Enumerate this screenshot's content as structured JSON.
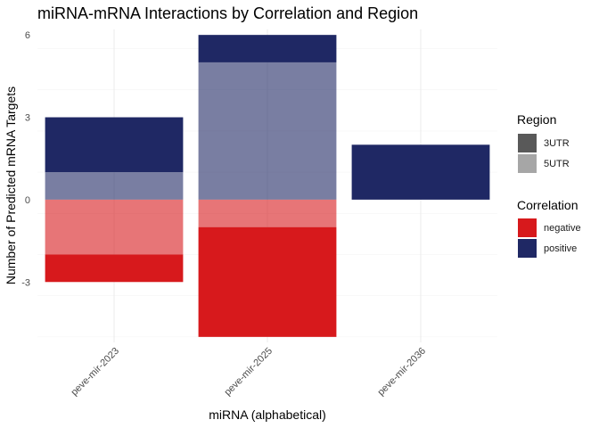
{
  "chart_data": {
    "type": "bar",
    "stacked": true,
    "title": "miRNA-mRNA Interactions by Correlation and Region",
    "xlabel": "miRNA (alphabetical)",
    "ylabel": "Number of Predicted mRNA Targets",
    "categories": [
      "peve-mir-2023",
      "peve-mir-2025",
      "peve-mir-2036"
    ],
    "ylim": [
      -5.2,
      6.2
    ],
    "yticks": [
      -3,
      0,
      3,
      6
    ],
    "series": [
      {
        "name": "positive 5UTR",
        "correlation": "positive",
        "region": "5UTR",
        "color": "#1f2864",
        "alpha": 0.6,
        "values": [
          1,
          5,
          0
        ]
      },
      {
        "name": "positive 3UTR",
        "correlation": "positive",
        "region": "3UTR",
        "color": "#1f2864",
        "alpha": 1.0,
        "values": [
          2,
          1,
          2
        ]
      },
      {
        "name": "negative 5UTR",
        "correlation": "negative",
        "region": "5UTR",
        "color": "#d7191c",
        "alpha": 0.6,
        "values": [
          -2,
          -1,
          0
        ]
      },
      {
        "name": "negative 3UTR",
        "correlation": "negative",
        "region": "3UTR",
        "color": "#d7191c",
        "alpha": 1.0,
        "values": [
          -1,
          -4,
          0
        ]
      }
    ],
    "legends": {
      "region": {
        "title": "Region",
        "items": [
          {
            "label": "3UTR",
            "color": "#595959"
          },
          {
            "label": "5UTR",
            "color": "#a6a6a6"
          }
        ]
      },
      "correlation": {
        "title": "Correlation",
        "items": [
          {
            "label": "negative",
            "color": "#d7191c"
          },
          {
            "label": "positive",
            "color": "#1f2864"
          }
        ]
      }
    },
    "legend_position": "right",
    "grid": true
  }
}
